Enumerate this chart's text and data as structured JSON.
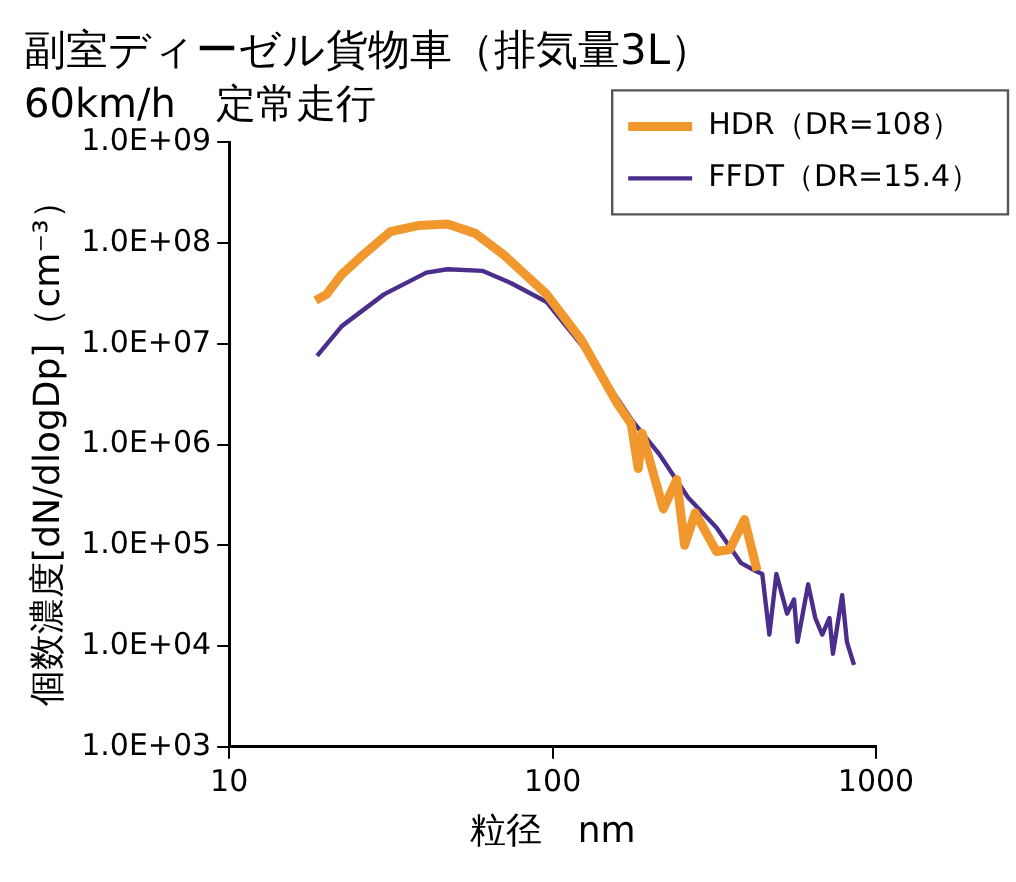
{
  "chart_data": {
    "type": "line",
    "title": "副室ディーゼル貨物車（排気量3L）",
    "subtitle": "60km/h　定常走行",
    "xlabel": "粒径　nm",
    "ylabel": "個数濃度[dN/dlogDp]（cm⁻³）",
    "log": "xy",
    "grid": false,
    "legend": "top right",
    "marker": "none",
    "line_style": "solid",
    "xlim": [
      10,
      1000
    ],
    "xticks": [
      10,
      100,
      1000
    ],
    "ylim": [
      1000,
      1000000000
    ],
    "yticks": [
      {
        "value": 1000,
        "label": "1.0E+03"
      },
      {
        "value": 10000,
        "label": "1.0E+04"
      },
      {
        "value": 100000,
        "label": "1.0E+05"
      },
      {
        "value": 1000000,
        "label": "1.0E+06"
      },
      {
        "value": 10000000,
        "label": "1.0E+07"
      },
      {
        "value": 100000000,
        "label": "1.0E+08"
      },
      {
        "value": 1000000000,
        "label": "1.0E+09"
      }
    ],
    "series": [
      {
        "name": "HDR（DR=108）",
        "color": "#f0982e",
        "x": [
          18.5,
          20,
          22.3,
          25.9,
          31.5,
          38.7,
          47.3,
          57.7,
          70.8,
          95.9,
          122.6,
          158,
          175,
          184,
          189,
          220,
          242,
          256,
          276,
          321,
          353,
          392,
          429
        ],
        "values": [
          27000000,
          31000000,
          49000000,
          76000000,
          130000000,
          150000000,
          155000000,
          125000000,
          76000000,
          31000000,
          11000000,
          2600000,
          1600000,
          580000,
          1300000,
          230000,
          450000,
          100000,
          210000,
          87000,
          91000,
          180000,
          56000
        ]
      },
      {
        "name": "FFDT（DR=15.4）",
        "color": "#4b2e8c",
        "x": [
          18.7,
          22.3,
          30.1,
          40.7,
          47.3,
          60.9,
          74.5,
          95.9,
          123,
          177,
          214,
          262,
          321,
          382,
          423,
          445,
          468,
          492,
          531,
          558,
          572,
          617,
          649,
          682,
          718,
          736,
          786,
          813,
          855
        ],
        "values": [
          7600000,
          15000000,
          31000000,
          51000000,
          55000000,
          53000000,
          40000000,
          26000000,
          9700000,
          1700000,
          800000,
          300000,
          150000,
          67000,
          56000,
          52000,
          13000,
          52000,
          21000,
          29000,
          11000,
          41000,
          19000,
          13000,
          19000,
          8400,
          32000,
          11000,
          6500
        ]
      }
    ]
  }
}
